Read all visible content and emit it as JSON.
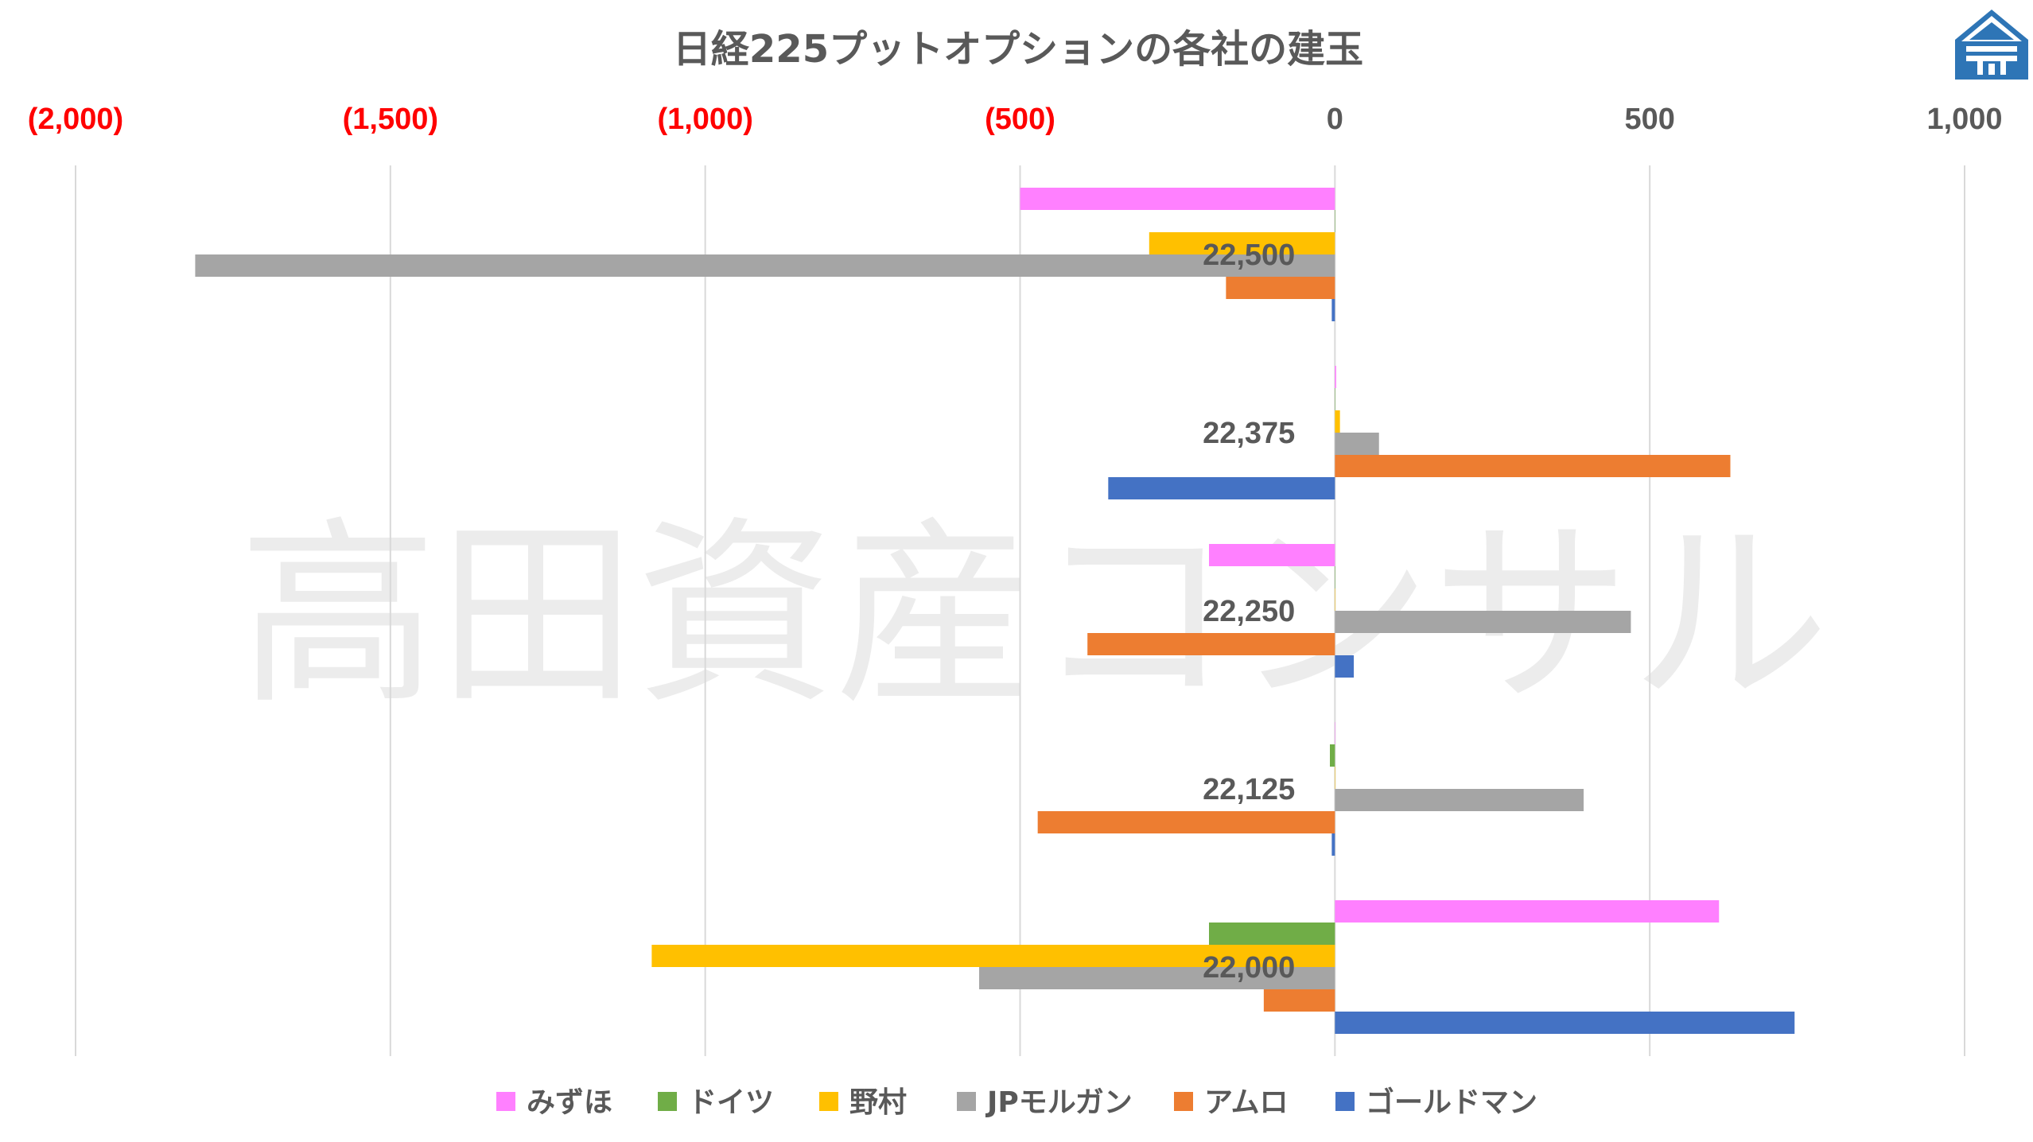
{
  "colors": {
    "negative_tick": "#ff0000",
    "tick": "#595959",
    "grid": "#d9d9d9",
    "logo": "#2e75b6"
  },
  "watermark": "高田資産コンサル",
  "logo_icon": "house-logo-icon",
  "chart_data": {
    "type": "bar",
    "orientation": "horizontal",
    "title": "日経225プットオプションの各社の建玉",
    "xlim": [
      -2000,
      1000
    ],
    "x_ticks": [
      {
        "value": -2000,
        "label": "(2,000)",
        "negative": true
      },
      {
        "value": -1500,
        "label": "(1,500)",
        "negative": true
      },
      {
        "value": -1000,
        "label": "(1,000)",
        "negative": true
      },
      {
        "value": -500,
        "label": "(500)",
        "negative": true
      },
      {
        "value": 0,
        "label": "0",
        "negative": false
      },
      {
        "value": 500,
        "label": "500",
        "negative": false
      },
      {
        "value": 1000,
        "label": "1,000",
        "negative": false
      }
    ],
    "grid": true,
    "legend_position": "bottom",
    "categories": [
      "22,500",
      "22,375",
      "22,250",
      "22,125",
      "22,000"
    ],
    "series": [
      {
        "name": "みずほ",
        "color": "#ff80ff",
        "values": [
          -500,
          2,
          -200,
          0,
          610
        ]
      },
      {
        "name": "ドイツ",
        "color": "#70ad47",
        "values": [
          0,
          0,
          0,
          -8,
          -200
        ]
      },
      {
        "name": "野村",
        "color": "#ffc000",
        "values": [
          -295,
          8,
          0,
          0,
          -1085
        ]
      },
      {
        "name": "JPモルガン",
        "color": "#a5a5a5",
        "values": [
          -1810,
          70,
          470,
          395,
          -565
        ]
      },
      {
        "name": "アムロ",
        "color": "#ed7d31",
        "values": [
          -173,
          628,
          -393,
          -472,
          -113
        ]
      },
      {
        "name": "ゴールドマン",
        "color": "#4472c4",
        "values": [
          -5,
          -360,
          30,
          -5,
          730
        ]
      }
    ]
  }
}
